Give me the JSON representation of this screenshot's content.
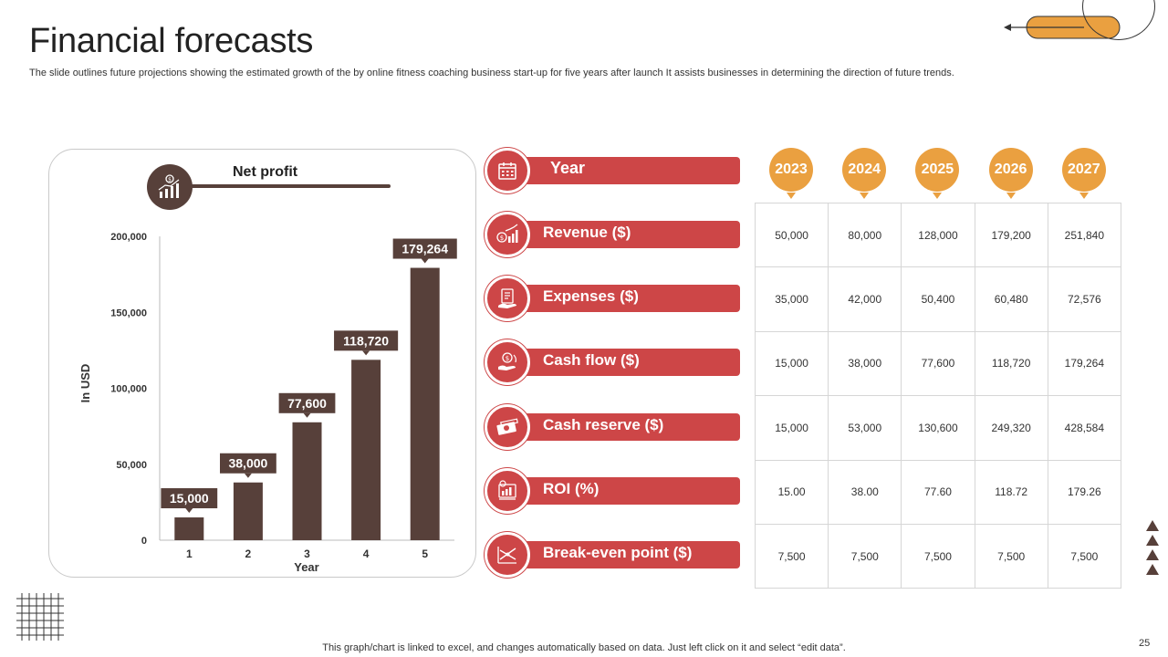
{
  "title": "Financial forecasts",
  "subtitle": "The slide outlines future projections showing the estimated growth of the by online fitness coaching business start-up for five years after launch It assists businesses in determining the direction of future trends.",
  "footer": "This graph/chart is linked to excel, and changes automatically based on data. Just left click on it and select “edit data”.",
  "page_number": "25",
  "colors": {
    "brown": "#57403a",
    "red": "#cd4647",
    "orange": "#eaa040"
  },
  "chart_data": {
    "type": "bar",
    "title": "Net profit",
    "xlabel": "Year",
    "ylabel": "In USD",
    "categories": [
      "1",
      "2",
      "3",
      "4",
      "5"
    ],
    "values": [
      15000,
      38000,
      77600,
      118720,
      179264
    ],
    "value_labels": [
      "15,000",
      "38,000",
      "77,600",
      "118,720",
      "179,264"
    ],
    "ylim": [
      0,
      200000
    ],
    "yticks": [
      0,
      50000,
      100000,
      150000,
      200000
    ],
    "ytick_labels": [
      "0",
      "50,000",
      "100,000",
      "150,000",
      "200,000"
    ]
  },
  "table": {
    "header_label": "Year",
    "years": [
      "2023",
      "2024",
      "2025",
      "2026",
      "2027"
    ],
    "rows": [
      {
        "label": "Revenue ($)",
        "icon": "revenue-chart-icon",
        "values": [
          "50,000",
          "80,000",
          "128,000",
          "179,200",
          "251,840"
        ]
      },
      {
        "label": "Expenses ($)",
        "icon": "expenses-coins-icon",
        "values": [
          "35,000",
          "42,000",
          "50,400",
          "60,480",
          "72,576"
        ]
      },
      {
        "label": "Cash flow ($)",
        "icon": "cash-flow-hand-icon",
        "values": [
          "15,000",
          "38,000",
          "77,600",
          "118,720",
          "179,264"
        ]
      },
      {
        "label": "Cash reserve ($)",
        "icon": "cash-reserve-money-icon",
        "values": [
          "15,000",
          "53,000",
          "130,600",
          "249,320",
          "428,584"
        ]
      },
      {
        "label": "ROI (%)",
        "icon": "roi-icon",
        "values": [
          "15.00",
          "38.00",
          "77.60",
          "118.72",
          "179.26"
        ]
      },
      {
        "label": "Break-even point ($)",
        "icon": "break-even-icon",
        "values": [
          "7,500",
          "7,500",
          "7,500",
          "7,500",
          "7,500"
        ]
      }
    ]
  }
}
